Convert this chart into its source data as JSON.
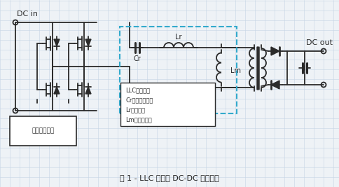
{
  "title": "图 1 - LLC 谐振的 DC-DC 模块电路",
  "bg_color": "#eef2f6",
  "grid_color": "#c5d5e5",
  "line_color": "#2a2a2a",
  "dashed_box_color": "#33aacc",
  "label_box_text": [
    "LLC谐振电路",
    "Cr：谐振电容器",
    "Lr：漏电感",
    "Lm：励磁电感"
  ],
  "dc_in_label": "DC in",
  "dc_out_label": "DC out",
  "cr_label": "Cr",
  "lr_label": "Lr",
  "lm_label": "Lm",
  "switch_label": "开关控制电路"
}
